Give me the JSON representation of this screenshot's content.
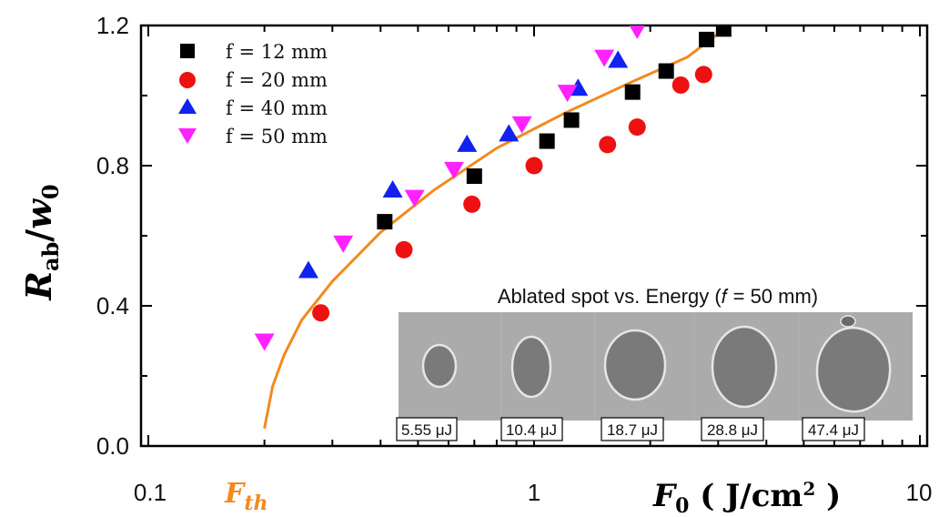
{
  "chart_data": {
    "type": "scatter",
    "xscale": "log",
    "xlim": [
      0.1,
      10
    ],
    "ylim": [
      0.0,
      1.2
    ],
    "xticks": [
      "0.1",
      "1",
      "10"
    ],
    "yticks": [
      "0.0",
      "0.4",
      "0.8",
      "1.2"
    ],
    "ylabel": {
      "main": "R",
      "sub": "ab",
      "sep": "/",
      "main2": "w",
      "sub2": "0"
    },
    "xlabel": {
      "main": "F",
      "sub": "0",
      "unit_pre": " ( J/cm",
      "unit_sup": "2",
      "unit_post": " )"
    },
    "threshold_label": {
      "main": "F",
      "sub": "th"
    },
    "threshold_x": 0.2,
    "fit_color": "#f28a1e",
    "fit_points": [
      {
        "x": 0.2,
        "y": 0.05
      },
      {
        "x": 0.21,
        "y": 0.17
      },
      {
        "x": 0.225,
        "y": 0.26
      },
      {
        "x": 0.25,
        "y": 0.36
      },
      {
        "x": 0.3,
        "y": 0.47
      },
      {
        "x": 0.4,
        "y": 0.61
      },
      {
        "x": 0.55,
        "y": 0.73
      },
      {
        "x": 0.8,
        "y": 0.85
      },
      {
        "x": 1.2,
        "y": 0.95
      },
      {
        "x": 1.8,
        "y": 1.04
      },
      {
        "x": 2.5,
        "y": 1.11
      },
      {
        "x": 3.2,
        "y": 1.2
      }
    ],
    "series": [
      {
        "name": "f = 12 mm",
        "marker": "square",
        "color": "#000000",
        "points": [
          {
            "x": 0.41,
            "y": 0.64
          },
          {
            "x": 0.7,
            "y": 0.77
          },
          {
            "x": 1.08,
            "y": 0.87
          },
          {
            "x": 1.25,
            "y": 0.93
          },
          {
            "x": 1.8,
            "y": 1.01
          },
          {
            "x": 2.2,
            "y": 1.07
          },
          {
            "x": 2.8,
            "y": 1.16
          },
          {
            "x": 3.1,
            "y": 1.19
          }
        ]
      },
      {
        "name": "f = 20 mm",
        "marker": "circle",
        "color": "#ee1111",
        "points": [
          {
            "x": 0.28,
            "y": 0.38
          },
          {
            "x": 0.46,
            "y": 0.56
          },
          {
            "x": 0.69,
            "y": 0.69
          },
          {
            "x": 1.0,
            "y": 0.8
          },
          {
            "x": 1.55,
            "y": 0.86
          },
          {
            "x": 1.85,
            "y": 0.91
          },
          {
            "x": 2.4,
            "y": 1.03
          },
          {
            "x": 2.75,
            "y": 1.06
          }
        ]
      },
      {
        "name": "f = 40 mm",
        "marker": "triangle-up",
        "color": "#1122ee",
        "points": [
          {
            "x": 0.26,
            "y": 0.5
          },
          {
            "x": 0.43,
            "y": 0.73
          },
          {
            "x": 0.67,
            "y": 0.86
          },
          {
            "x": 0.86,
            "y": 0.89
          },
          {
            "x": 1.3,
            "y": 1.02
          },
          {
            "x": 1.65,
            "y": 1.1
          }
        ]
      },
      {
        "name": "f = 50 mm",
        "marker": "triangle-down",
        "color": "#ff22ff",
        "points": [
          {
            "x": 0.2,
            "y": 0.3
          },
          {
            "x": 0.32,
            "y": 0.58
          },
          {
            "x": 0.49,
            "y": 0.71
          },
          {
            "x": 0.62,
            "y": 0.79
          },
          {
            "x": 0.93,
            "y": 0.92
          },
          {
            "x": 1.22,
            "y": 1.01
          },
          {
            "x": 1.52,
            "y": 1.11
          },
          {
            "x": 1.85,
            "y": 1.19
          }
        ]
      }
    ],
    "legend_position": "top-left",
    "inset": {
      "title": "Ablated spot vs. Energy (𝑓 = 50 mm)",
      "energies": [
        "5.55 μJ",
        "10.4 μJ",
        "18.7 μJ",
        "28.8 μJ",
        "47.4 μJ"
      ]
    }
  }
}
